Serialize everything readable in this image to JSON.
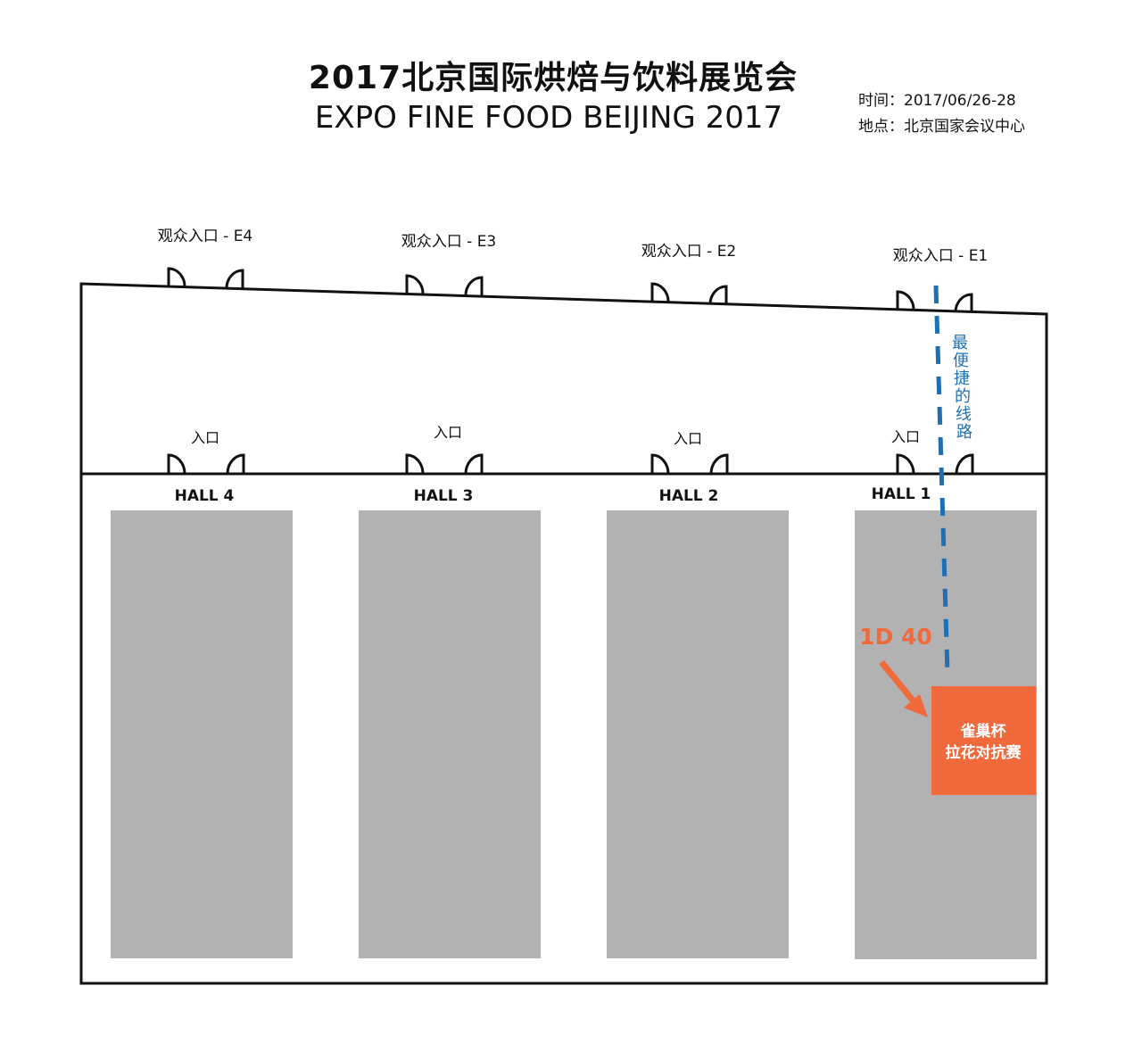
{
  "title_cn": "2017北京国际烘焙与饮料展览会",
  "title_en": "EXPO FINE FOOD BEIJING 2017",
  "info": {
    "time": "时间：2017/06/26-28",
    "location": "地点：北京国家会议中心"
  },
  "visitor_entrances": [
    {
      "label": "观众入口 - E4"
    },
    {
      "label": "观众入口 - E3"
    },
    {
      "label": "观众入口 - E2"
    },
    {
      "label": "观众入口 - E1"
    }
  ],
  "hall_entrances": [
    {
      "label": "入口"
    },
    {
      "label": "入口"
    },
    {
      "label": "入口"
    },
    {
      "label": "入口"
    }
  ],
  "halls": [
    {
      "name": "HALL 4"
    },
    {
      "name": "HALL 3"
    },
    {
      "name": "HALL 2"
    },
    {
      "name": "HALL 1"
    }
  ],
  "route": {
    "chars": [
      "最",
      "便",
      "捷",
      "的",
      "线",
      "路"
    ],
    "color": "#1f6fb2"
  },
  "booth": {
    "code": "1D 40",
    "line1": "雀巢杯",
    "line2": "拉花对抗赛",
    "color": "#f06a3c"
  },
  "colors": {
    "hall_fill": "#b3b2b3",
    "outline": "#111111"
  }
}
